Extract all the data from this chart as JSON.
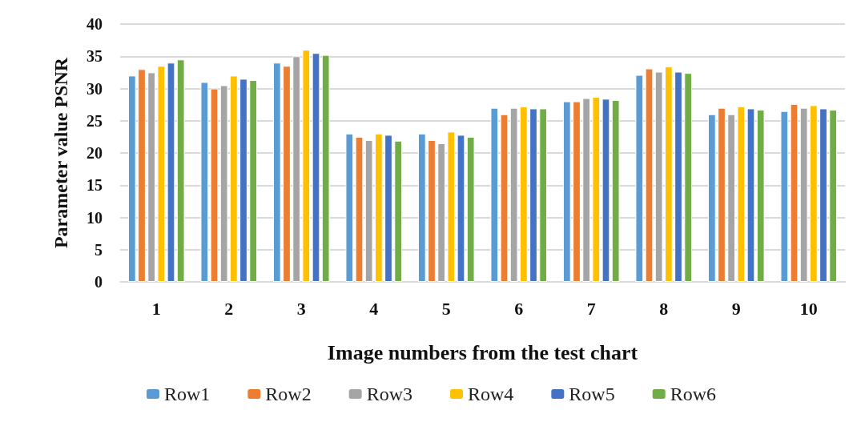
{
  "chart_data": {
    "type": "bar",
    "xlabel": "Image numbers from the test chart",
    "ylabel": "Parameter value PSNR",
    "categories": [
      "1",
      "2",
      "3",
      "4",
      "5",
      "6",
      "7",
      "8",
      "9",
      "10"
    ],
    "series": [
      {
        "name": "Row1",
        "color": "#5b9bd5",
        "values": [
          32,
          31,
          34,
          23,
          23,
          27,
          28,
          32.1,
          26,
          26.5
        ]
      },
      {
        "name": "Row2",
        "color": "#ed7d31",
        "values": [
          33,
          30,
          33.5,
          22.5,
          22,
          26,
          28,
          33.1,
          27,
          27.6
        ]
      },
      {
        "name": "Row3",
        "color": "#a5a5a5",
        "values": [
          32.5,
          30.5,
          35,
          22,
          21.5,
          27,
          28.5,
          32.6,
          26,
          27
        ]
      },
      {
        "name": "Row4",
        "color": "#ffc000",
        "values": [
          33.5,
          32,
          36,
          23,
          23.3,
          27.2,
          28.7,
          33.4,
          27.2,
          27.4
        ]
      },
      {
        "name": "Row5",
        "color": "#4472c4",
        "values": [
          34,
          31.5,
          35.5,
          22.8,
          22.8,
          26.9,
          28.4,
          32.6,
          26.9,
          26.9
        ]
      },
      {
        "name": "Row6",
        "color": "#70ad47",
        "values": [
          34.5,
          31.3,
          35.2,
          21.9,
          22.5,
          26.9,
          28.2,
          32.4,
          26.7,
          26.7
        ]
      }
    ],
    "ylim": [
      0,
      40
    ],
    "yticks": [
      0,
      5,
      10,
      15,
      20,
      25,
      30,
      35,
      40
    ],
    "grid": "y",
    "legend": "bottom"
  }
}
